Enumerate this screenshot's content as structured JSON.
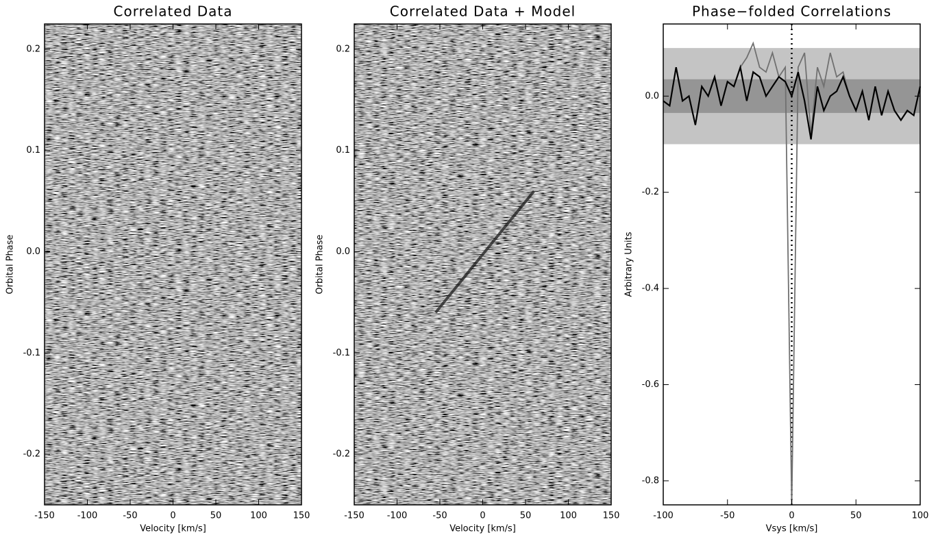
{
  "chart_data": [
    {
      "type": "heatmap",
      "title": "Correlated Data",
      "x_label": "Velocity [km/s]",
      "y_label": "Orbital Phase",
      "xlim": [
        -150,
        150
      ],
      "xticks": [
        -150,
        -100,
        -50,
        0,
        50,
        100,
        150
      ],
      "ylim": [
        -0.25,
        0.225
      ],
      "yticks": [
        -0.2,
        -0.1,
        {
          "value": 0,
          "label": "0.0"
        },
        0.1,
        0.2
      ]
    },
    {
      "type": "heatmap",
      "title": "Correlated Data + Model",
      "x_label": "Velocity [km/s]",
      "y_label": "Orbital Phase",
      "xlim": [
        -150,
        150
      ],
      "xticks": [
        -150,
        -100,
        -50,
        0,
        50,
        100,
        150
      ],
      "ylim": [
        -0.25,
        0.225
      ],
      "yticks": [
        -0.2,
        -0.1,
        {
          "value": 0,
          "label": "0.0"
        },
        0.1,
        0.2
      ],
      "model_trace": {
        "x": [
          -55,
          60
        ],
        "y": [
          -0.06,
          0.06
        ],
        "color": "#1a1a1a"
      }
    },
    {
      "type": "line",
      "title": "Phase−folded Correlations",
      "x_label": "Vsys [km/s]",
      "y_label": "Arbitrary Units",
      "xlim": [
        -100,
        100
      ],
      "xticks": [
        -100,
        -50,
        0,
        50,
        100
      ],
      "ylim": [
        -0.85,
        0.15
      ],
      "yticks": [
        -0.8,
        -0.6,
        -0.4,
        -0.2,
        {
          "value": 0,
          "label": "0.0"
        }
      ],
      "bands": [
        {
          "lower": -0.1,
          "upper": 0.1,
          "color": "#c4c4c4"
        },
        {
          "lower": -0.035,
          "upper": 0.035,
          "color": "#959595"
        }
      ],
      "vline": 0,
      "x": [
        -100,
        -95,
        -90,
        -85,
        -80,
        -75,
        -70,
        -65,
        -60,
        -55,
        -50,
        -45,
        -40,
        -35,
        -30,
        -25,
        -20,
        -15,
        -10,
        -5,
        0,
        5,
        10,
        15,
        20,
        25,
        30,
        35,
        40,
        45,
        50,
        55,
        60,
        65,
        70,
        75,
        80,
        85,
        90,
        95,
        100
      ],
      "series": [
        {
          "color": "#707070",
          "values": [
            -0.01,
            -0.02,
            0.06,
            -0.01,
            0.0,
            -0.06,
            0.02,
            0.0,
            0.04,
            -0.02,
            0.03,
            0.02,
            0.06,
            0.08,
            0.11,
            0.06,
            0.05,
            0.09,
            0.04,
            0.06,
            -0.85,
            0.06,
            0.09,
            -0.08,
            0.06,
            0.02,
            0.09,
            0.04,
            0.05,
            0.0,
            -0.03,
            0.01,
            -0.05,
            0.02,
            -0.04,
            0.01,
            -0.03,
            -0.05,
            -0.03,
            -0.04,
            0.02
          ]
        },
        {
          "color": "#000000",
          "values": [
            -0.01,
            -0.02,
            0.06,
            -0.01,
            0.0,
            -0.06,
            0.02,
            0.0,
            0.04,
            -0.02,
            0.03,
            0.02,
            0.06,
            -0.01,
            0.05,
            0.04,
            0.0,
            0.02,
            0.04,
            0.03,
            0.0,
            0.05,
            -0.01,
            -0.09,
            0.02,
            -0.03,
            0.0,
            0.01,
            0.04,
            0.0,
            -0.03,
            0.01,
            -0.05,
            0.02,
            -0.04,
            0.01,
            -0.03,
            -0.05,
            -0.03,
            -0.04,
            0.02
          ]
        }
      ]
    }
  ]
}
